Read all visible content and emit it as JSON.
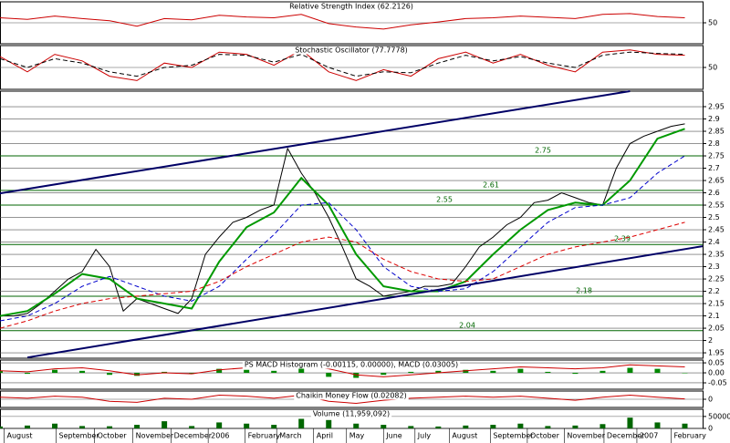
{
  "chart_data": [
    {
      "type": "line",
      "title": "Relative Strength Index (62.2126)",
      "ylim": [
        0,
        100
      ],
      "yticks": [
        50
      ],
      "grid": true,
      "x": [
        0,
        2,
        4,
        6,
        8,
        10,
        12,
        14,
        16,
        18,
        20,
        22,
        24,
        26,
        28,
        30,
        32,
        34,
        36,
        38,
        40,
        42,
        44,
        46,
        48,
        50
      ],
      "xlim": [
        0,
        51.3
      ],
      "series": [
        {
          "color": "#cc0000",
          "values": [
            62,
            58,
            66,
            60,
            55,
            42,
            60,
            57,
            68,
            64,
            62,
            70,
            48,
            40,
            35,
            45,
            52,
            60,
            62,
            66,
            63,
            60,
            70,
            72,
            65,
            62
          ]
        }
      ]
    },
    {
      "type": "line",
      "title": "Stochastic Oscillator (77.7778)",
      "ylim": [
        0,
        100
      ],
      "yticks": [
        50
      ],
      "grid": true,
      "x": [
        0,
        2,
        4,
        6,
        8,
        10,
        12,
        14,
        16,
        18,
        20,
        22,
        24,
        26,
        28,
        30,
        32,
        34,
        36,
        38,
        40,
        42,
        44,
        46,
        48,
        50
      ],
      "xlim": [
        0,
        51.3
      ],
      "series": [
        {
          "color": "#cc0000",
          "values": [
            75,
            40,
            80,
            65,
            30,
            20,
            60,
            50,
            85,
            80,
            55,
            90,
            40,
            20,
            45,
            30,
            70,
            85,
            60,
            80,
            55,
            40,
            85,
            90,
            80,
            78
          ]
        },
        {
          "color": "#000000",
          "dash": true,
          "values": [
            70,
            50,
            70,
            60,
            40,
            30,
            50,
            55,
            80,
            78,
            62,
            80,
            50,
            30,
            40,
            38,
            60,
            78,
            65,
            75,
            60,
            50,
            78,
            85,
            82,
            80
          ]
        }
      ]
    },
    {
      "type": "line",
      "ylim": [
        1.928,
        3.013
      ],
      "xlim": [
        0,
        51.3
      ],
      "grid": true,
      "yticks": [
        1.95,
        2.0,
        2.05,
        2.1,
        2.15,
        2.2,
        2.25,
        2.3,
        2.35,
        2.4,
        2.45,
        2.5,
        2.55,
        2.6,
        2.65,
        2.7,
        2.75,
        2.8,
        2.85,
        2.9,
        2.95
      ],
      "levels": [
        2.75,
        2.61,
        2.55,
        2.39,
        2.18,
        2.04
      ],
      "level_color": "#006600",
      "x": [
        0,
        2,
        4,
        6,
        8,
        10,
        12,
        14,
        16,
        18,
        20,
        22,
        24,
        26,
        28,
        30,
        32,
        34,
        36,
        38,
        40,
        42,
        44,
        46,
        48,
        50
      ],
      "series": [
        {
          "color": "#000000",
          "x": [
            0,
            1,
            2,
            3,
            4,
            5,
            6,
            7,
            8,
            9,
            10,
            11,
            12,
            13,
            14,
            15,
            16,
            17,
            18,
            19,
            20,
            21,
            22,
            23,
            24,
            25,
            26,
            27,
            28,
            29,
            30,
            31,
            32,
            33,
            34,
            35,
            36,
            37,
            38,
            39,
            40,
            41,
            42,
            43,
            44,
            45,
            46,
            47,
            48,
            49,
            50
          ],
          "values": [
            2.1,
            2.1,
            2.11,
            2.15,
            2.2,
            2.25,
            2.28,
            2.37,
            2.3,
            2.12,
            2.17,
            2.15,
            2.13,
            2.11,
            2.17,
            2.35,
            2.42,
            2.48,
            2.5,
            2.53,
            2.55,
            2.78,
            2.68,
            2.6,
            2.5,
            2.38,
            2.25,
            2.22,
            2.18,
            2.19,
            2.2,
            2.22,
            2.22,
            2.23,
            2.3,
            2.38,
            2.42,
            2.47,
            2.5,
            2.56,
            2.57,
            2.6,
            2.58,
            2.56,
            2.55,
            2.7,
            2.8,
            2.83,
            2.85,
            2.87,
            2.88
          ]
        },
        {
          "color": "#009900",
          "width": 2,
          "values": [
            2.1,
            2.12,
            2.19,
            2.27,
            2.25,
            2.17,
            2.15,
            2.13,
            2.32,
            2.46,
            2.52,
            2.66,
            2.55,
            2.35,
            2.22,
            2.2,
            2.2,
            2.24,
            2.35,
            2.45,
            2.53,
            2.56,
            2.55,
            2.65,
            2.82,
            2.86
          ]
        },
        {
          "color": "#0000cc",
          "dash": true,
          "values": [
            2.08,
            2.1,
            2.15,
            2.22,
            2.26,
            2.22,
            2.18,
            2.16,
            2.22,
            2.33,
            2.43,
            2.55,
            2.56,
            2.45,
            2.3,
            2.22,
            2.2,
            2.21,
            2.28,
            2.38,
            2.48,
            2.54,
            2.55,
            2.58,
            2.68,
            2.75
          ]
        },
        {
          "color": "#dd0000",
          "dash": true,
          "values": [
            2.05,
            2.08,
            2.12,
            2.15,
            2.17,
            2.18,
            2.19,
            2.2,
            2.24,
            2.3,
            2.35,
            2.4,
            2.42,
            2.4,
            2.33,
            2.28,
            2.25,
            2.24,
            2.25,
            2.3,
            2.35,
            2.38,
            2.4,
            2.42,
            2.45,
            2.48
          ]
        },
        {
          "color": "#000066",
          "width": 2,
          "x": [
            0,
            46
          ],
          "values": [
            2.598,
            3.013
          ]
        },
        {
          "color": "#000066",
          "width": 2,
          "x": [
            2,
            51.3
          ],
          "values": [
            1.931,
            2.383
          ]
        }
      ]
    },
    {
      "type": "bar",
      "title": "PS MACD Histogram (-0.00115, 0.00000), MACD (0.03005)",
      "ylim": [
        -0.082,
        0.064
      ],
      "xlim": [
        0,
        51.3
      ],
      "yticks": [
        0.05,
        {
          "value": 0,
          "label": "0.00"
        },
        -0.05
      ],
      "grid": true,
      "x": [
        0,
        2,
        4,
        6,
        8,
        10,
        12,
        14,
        16,
        18,
        20,
        22,
        24,
        26,
        28,
        30,
        32,
        34,
        36,
        38,
        40,
        42,
        44,
        46,
        48,
        50
      ],
      "series": [
        {
          "color": "#008800",
          "values": [
            0.01,
            -0.005,
            0.015,
            0.01,
            -0.01,
            -0.015,
            0.005,
            -0.005,
            0.02,
            0.015,
            0.01,
            0.03,
            -0.02,
            -0.025,
            -0.01,
            0.005,
            0.01,
            0.015,
            0.01,
            0.02,
            0.005,
            -0.005,
            0.01,
            0.025,
            0.02,
            -0.001
          ]
        },
        {
          "type": "line",
          "color": "#cc0000",
          "values": [
            0.01,
            0.005,
            0.02,
            0.025,
            0.01,
            -0.01,
            0,
            -0.005,
            0.015,
            0.025,
            0.03,
            0.04,
            0.02,
            -0.01,
            -0.02,
            -0.01,
            0,
            0.01,
            0.02,
            0.03,
            0.025,
            0.02,
            0.025,
            0.04,
            0.035,
            0.03
          ]
        }
      ]
    },
    {
      "type": "line",
      "title": "Chaikin Money Flow (0.02082)",
      "ylim": [
        -0.4,
        0.4
      ],
      "yticks": [
        0
      ],
      "grid": true,
      "xlim": [
        0,
        51.3
      ],
      "x": [
        0,
        2,
        4,
        6,
        8,
        10,
        12,
        14,
        16,
        18,
        20,
        22,
        24,
        26,
        28,
        30,
        32,
        34,
        36,
        38,
        40,
        42,
        44,
        46,
        48,
        50
      ],
      "series": [
        {
          "color": "#cc0000",
          "values": [
            0.1,
            0.05,
            0.15,
            0.1,
            -0.1,
            -0.15,
            0.05,
            0,
            0.2,
            0.15,
            0.05,
            0.2,
            -0.1,
            -0.2,
            -0.05,
            0.05,
            0.1,
            0.15,
            0.1,
            0.15,
            0.05,
            -0.05,
            0.1,
            0.2,
            0.1,
            0.02
          ]
        }
      ]
    },
    {
      "type": "bar",
      "title": "Volume (11,959,092)",
      "ylim": [
        0,
        80000
      ],
      "yticks": [
        50000,
        0
      ],
      "grid": true,
      "xlim": [
        0,
        51.3
      ],
      "x": [
        0,
        2,
        4,
        6,
        8,
        10,
        12,
        14,
        16,
        18,
        20,
        22,
        24,
        26,
        28,
        30,
        32,
        34,
        36,
        38,
        40,
        42,
        44,
        46,
        48,
        50
      ],
      "series": [
        {
          "color": "#006600",
          "values": [
            8000,
            12000,
            20000,
            10000,
            9000,
            15000,
            30000,
            10000,
            25000,
            20000,
            15000,
            40000,
            35000,
            20000,
            15000,
            10000,
            8000,
            12000,
            15000,
            20000,
            10000,
            12000,
            18000,
            45000,
            25000,
            20000
          ]
        }
      ],
      "xticks": [
        {
          "value": 0.3,
          "label": "August"
        },
        {
          "value": 4.1,
          "label": "September"
        },
        {
          "value": 6.9,
          "label": "October"
        },
        {
          "value": 9.7,
          "label": "November"
        },
        {
          "value": 12.5,
          "label": "December"
        },
        {
          "value": 15.2,
          "label": "2006"
        },
        {
          "value": 17.9,
          "label": "February"
        },
        {
          "value": 20.2,
          "label": "March"
        },
        {
          "value": 22.9,
          "label": "April"
        },
        {
          "value": 25.3,
          "label": "May"
        },
        {
          "value": 28,
          "label": "June"
        },
        {
          "value": 30.3,
          "label": "July"
        },
        {
          "value": 32.8,
          "label": "August"
        },
        {
          "value": 35.8,
          "label": "September"
        },
        {
          "value": 38.5,
          "label": "October"
        },
        {
          "value": 41.2,
          "label": "November"
        },
        {
          "value": 44.1,
          "label": "December"
        },
        {
          "value": 46.5,
          "label": "2007"
        },
        {
          "value": 49,
          "label": "February"
        }
      ]
    }
  ]
}
